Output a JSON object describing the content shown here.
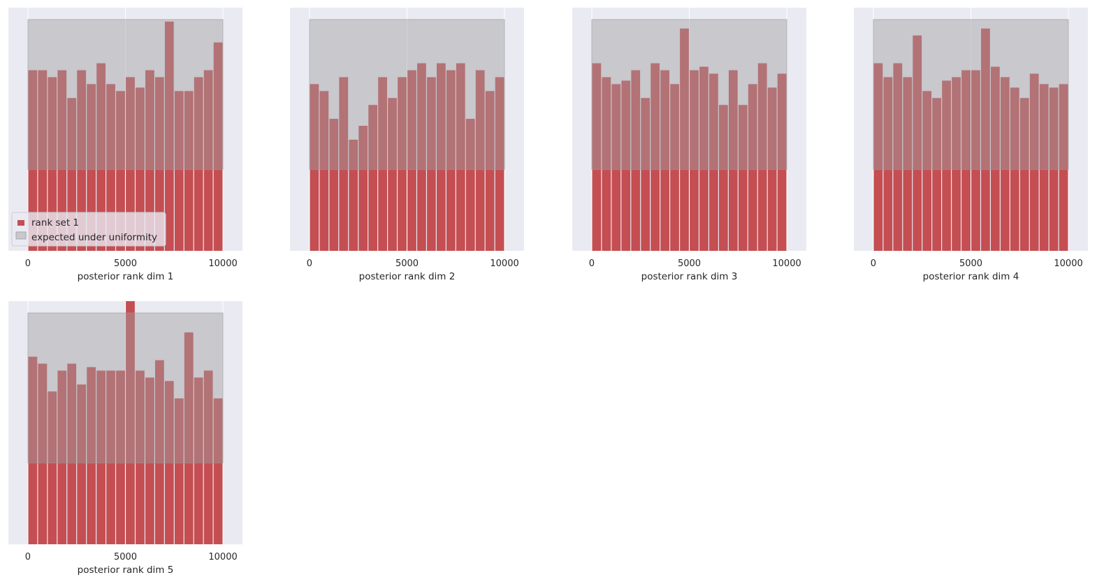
{
  "colors": {
    "plot_background": "#eaeaf2",
    "grid": "#ffffff",
    "bar": "#c44e52",
    "uniform_band": "#a0a0a0",
    "text": "#262626"
  },
  "legend": {
    "placement": "lower-left",
    "items": [
      {
        "label": "rank set 1",
        "icon": "red-square-icon"
      },
      {
        "label": "expected under uniformity",
        "icon": "gray-square-icon"
      }
    ]
  },
  "chart_data": [
    {
      "type": "bar",
      "xlabel": "posterior rank dim 1",
      "xticks": [
        "0",
        "5000",
        "10000"
      ],
      "xlim": [
        -1000,
        11000
      ],
      "ylim": [
        0,
        35
      ],
      "bin_edges": [
        0,
        500,
        1000,
        1500,
        2000,
        2500,
        3000,
        3500,
        4000,
        4500,
        5000,
        5500,
        6000,
        6500,
        7000,
        7500,
        8000,
        8500,
        9000,
        9500,
        10000
      ],
      "uniform_band": [
        11.7,
        33.3
      ],
      "series": [
        {
          "name": "rank set 1",
          "values": [
            26,
            26,
            25,
            26,
            22,
            26,
            24,
            27,
            24,
            23,
            25,
            23.5,
            26,
            25,
            33,
            23,
            23,
            25,
            26,
            30
          ]
        }
      ],
      "legend": true
    },
    {
      "type": "bar",
      "xlabel": "posterior rank dim 2",
      "xticks": [
        "0",
        "5000",
        "10000"
      ],
      "xlim": [
        -1000,
        11000
      ],
      "ylim": [
        0,
        35
      ],
      "bin_edges": [
        0,
        500,
        1000,
        1500,
        2000,
        2500,
        3000,
        3500,
        4000,
        4500,
        5000,
        5500,
        6000,
        6500,
        7000,
        7500,
        8000,
        8500,
        9000,
        9500,
        10000
      ],
      "uniform_band": [
        11.7,
        33.3
      ],
      "series": [
        {
          "name": "rank set 1",
          "values": [
            24,
            23,
            19,
            25,
            16,
            18,
            21,
            25,
            22,
            25,
            26,
            27,
            25,
            27,
            26,
            27,
            19,
            26,
            23,
            25
          ]
        }
      ],
      "legend": false
    },
    {
      "type": "bar",
      "xlabel": "posterior rank dim 3",
      "xticks": [
        "0",
        "5000",
        "10000"
      ],
      "xlim": [
        -1000,
        11000
      ],
      "ylim": [
        0,
        35
      ],
      "bin_edges": [
        0,
        500,
        1000,
        1500,
        2000,
        2500,
        3000,
        3500,
        4000,
        4500,
        5000,
        5500,
        6000,
        6500,
        7000,
        7500,
        8000,
        8500,
        9000,
        9500,
        10000
      ],
      "uniform_band": [
        11.7,
        33.3
      ],
      "series": [
        {
          "name": "rank set 1",
          "values": [
            27,
            25,
            24,
            24.5,
            26,
            22,
            27,
            26,
            24,
            32,
            26,
            26.5,
            25.5,
            21,
            26,
            21,
            24,
            27,
            23.5,
            25.5
          ]
        }
      ],
      "legend": false
    },
    {
      "type": "bar",
      "xlabel": "posterior rank dim 4",
      "xticks": [
        "0",
        "5000",
        "10000"
      ],
      "xlim": [
        -1000,
        11000
      ],
      "ylim": [
        0,
        35
      ],
      "bin_edges": [
        0,
        500,
        1000,
        1500,
        2000,
        2500,
        3000,
        3500,
        4000,
        4500,
        5000,
        5500,
        6000,
        6500,
        7000,
        7500,
        8000,
        8500,
        9000,
        9500,
        10000
      ],
      "uniform_band": [
        11.7,
        33.3
      ],
      "series": [
        {
          "name": "rank set 1",
          "values": [
            27,
            25,
            27,
            25,
            31,
            23,
            22,
            24.5,
            25,
            26,
            26,
            32,
            26.5,
            25,
            23.5,
            22,
            25.5,
            24,
            23.5,
            24
          ]
        }
      ],
      "legend": false
    },
    {
      "type": "bar",
      "xlabel": "posterior rank dim 5",
      "xticks": [
        "0",
        "5000",
        "10000"
      ],
      "xlim": [
        -1000,
        11000
      ],
      "ylim": [
        0,
        35
      ],
      "bin_edges": [
        0,
        500,
        1000,
        1500,
        2000,
        2500,
        3000,
        3500,
        4000,
        4500,
        5000,
        5500,
        6000,
        6500,
        7000,
        7500,
        8000,
        8500,
        9000,
        9500,
        10000
      ],
      "uniform_band": [
        11.7,
        33.3
      ],
      "series": [
        {
          "name": "rank set 1",
          "values": [
            27,
            26,
            22,
            25,
            26,
            23,
            25.5,
            25,
            25,
            25,
            35,
            25,
            24,
            26.5,
            23.5,
            21,
            30.5,
            24,
            25,
            21
          ]
        }
      ],
      "legend": false
    }
  ]
}
